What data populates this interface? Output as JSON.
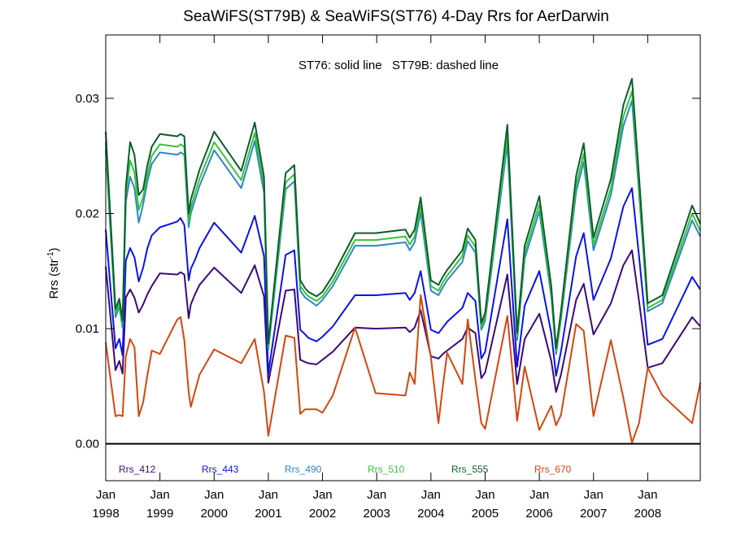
{
  "chart_data": {
    "type": "line",
    "title": "SeaWiFS(ST79B) & SeaWiFS(ST76) 4-Day Rrs for AerDarwin",
    "annotation": "ST76: solid line   ST79B: dashed line",
    "ylabel_main": "Rrs (str",
    "ylabel_sup": "-1",
    "ylabel_close": ")",
    "xlim": [
      1998.0,
      2008.97
    ],
    "ylim": [
      -0.0032,
      0.0355
    ],
    "yticks": [
      {
        "value": 0.0,
        "label": "0.00"
      },
      {
        "value": 0.01,
        "label": "0.01"
      },
      {
        "value": 0.02,
        "label": "0.02"
      },
      {
        "value": 0.03,
        "label": "0.03"
      }
    ],
    "xticks": [
      {
        "value": 1998.0,
        "month": "Jan",
        "year": "1998"
      },
      {
        "value": 1999.0,
        "month": "Jan",
        "year": "1999"
      },
      {
        "value": 2000.0,
        "month": "Jan",
        "year": "2000"
      },
      {
        "value": 2001.0,
        "month": "Jan",
        "year": "2001"
      },
      {
        "value": 2002.0,
        "month": "Jan",
        "year": "2002"
      },
      {
        "value": 2003.0,
        "month": "Jan",
        "year": "2003"
      },
      {
        "value": 2004.0,
        "month": "Jan",
        "year": "2004"
      },
      {
        "value": 2005.0,
        "month": "Jan",
        "year": "2005"
      },
      {
        "value": 2006.0,
        "month": "Jan",
        "year": "2006"
      },
      {
        "value": 2007.0,
        "month": "Jan",
        "year": "2007"
      },
      {
        "value": 2008.0,
        "month": "Jan",
        "year": "2008"
      }
    ],
    "x": [
      1998.0,
      1998.18,
      1998.25,
      1998.31,
      1998.37,
      1998.45,
      1998.53,
      1998.61,
      1998.69,
      1998.77,
      1998.85,
      1999.0,
      1999.32,
      1999.38,
      1999.45,
      1999.53,
      1999.57,
      1999.65,
      1999.73,
      2000.0,
      2000.5,
      2000.75,
      2000.92,
      2001.0,
      2001.32,
      2001.48,
      2001.59,
      2001.68,
      2001.74,
      2001.89,
      2002.0,
      2002.19,
      2002.6,
      2002.98,
      2003.53,
      2003.61,
      2003.7,
      2003.81,
      2004.0,
      2004.14,
      2004.22,
      2004.3,
      2004.58,
      2004.68,
      2004.82,
      2004.93,
      2005.0,
      2005.41,
      2005.59,
      2005.73,
      2006.0,
      2006.22,
      2006.31,
      2006.4,
      2006.68,
      2006.82,
      2007.0,
      2007.32,
      2007.55,
      2007.71,
      2007.84,
      2008.0,
      2008.27,
      2008.82,
      2008.97
    ],
    "legend": [
      {
        "label": "Rrs_412",
        "color": "#3a0a7a"
      },
      {
        "label": "Rrs_443",
        "color": "#0a14e6"
      },
      {
        "label": "Rrs_490",
        "color": "#2f86c6"
      },
      {
        "label": "Rrs_510",
        "color": "#36c33a"
      },
      {
        "label": "Rrs_555",
        "color": "#0a5e2a"
      },
      {
        "label": "Rrs_670",
        "color": "#d4460e"
      }
    ],
    "series": [
      {
        "name": "Rrs_412",
        "color": "#3a0a7a",
        "values": [
          0.0154,
          0.0064,
          0.0072,
          0.0061,
          0.0127,
          0.0134,
          0.0127,
          0.0114,
          0.0121,
          0.013,
          0.0137,
          0.0148,
          0.0147,
          0.0149,
          0.0147,
          0.0109,
          0.0121,
          0.013,
          0.0138,
          0.0153,
          0.0131,
          0.0155,
          0.0128,
          0.0053,
          0.0133,
          0.0134,
          0.0073,
          0.0071,
          0.007,
          0.0069,
          0.0073,
          0.008,
          0.0101,
          0.01,
          0.0101,
          0.0097,
          0.0101,
          0.0116,
          0.0076,
          0.0074,
          0.0078,
          0.0081,
          0.0091,
          0.0101,
          0.0096,
          0.0057,
          0.0062,
          0.0147,
          0.0052,
          0.0091,
          0.0113,
          0.0072,
          0.0045,
          0.006,
          0.0125,
          0.0139,
          0.0095,
          0.0122,
          0.0155,
          0.0168,
          0.0124,
          0.0066,
          0.007,
          0.011,
          0.0102
        ]
      },
      {
        "name": "Rrs_443",
        "color": "#0a14e6",
        "values": [
          0.0186,
          0.0083,
          0.0091,
          0.0077,
          0.0159,
          0.017,
          0.0162,
          0.0141,
          0.0153,
          0.017,
          0.0181,
          0.0188,
          0.0193,
          0.0196,
          0.019,
          0.0142,
          0.0152,
          0.016,
          0.017,
          0.0192,
          0.0166,
          0.0198,
          0.0163,
          0.0061,
          0.0164,
          0.0168,
          0.0099,
          0.0095,
          0.0092,
          0.0089,
          0.0093,
          0.0102,
          0.0129,
          0.0129,
          0.0131,
          0.0125,
          0.0131,
          0.015,
          0.0099,
          0.0096,
          0.0101,
          0.0106,
          0.0118,
          0.0131,
          0.0124,
          0.0074,
          0.008,
          0.0195,
          0.0067,
          0.012,
          0.015,
          0.0096,
          0.0059,
          0.008,
          0.0163,
          0.0183,
          0.0125,
          0.0161,
          0.0206,
          0.0222,
          0.0163,
          0.0086,
          0.0091,
          0.0145,
          0.0134
        ]
      },
      {
        "name": "Rrs_490",
        "color": "#2f86c6",
        "values": [
          0.0255,
          0.011,
          0.0119,
          0.0101,
          0.021,
          0.0232,
          0.0222,
          0.0192,
          0.0208,
          0.0228,
          0.0243,
          0.0253,
          0.0251,
          0.0253,
          0.0251,
          0.0188,
          0.02,
          0.0212,
          0.0224,
          0.0255,
          0.0222,
          0.0263,
          0.0218,
          0.0082,
          0.0221,
          0.0228,
          0.0133,
          0.0127,
          0.0125,
          0.012,
          0.0125,
          0.0137,
          0.0172,
          0.0172,
          0.0175,
          0.0168,
          0.0175,
          0.0201,
          0.0133,
          0.0129,
          0.0136,
          0.0142,
          0.0158,
          0.0176,
          0.0166,
          0.0099,
          0.0107,
          0.0261,
          0.009,
          0.0161,
          0.0202,
          0.0128,
          0.0078,
          0.0108,
          0.0219,
          0.0245,
          0.0168,
          0.0216,
          0.0276,
          0.0298,
          0.0218,
          0.0115,
          0.0122,
          0.0194,
          0.018
        ]
      },
      {
        "name": "Rrs_510",
        "color": "#36c33a",
        "values": [
          0.0262,
          0.0113,
          0.0122,
          0.0104,
          0.0216,
          0.0246,
          0.0236,
          0.0203,
          0.0214,
          0.0234,
          0.025,
          0.026,
          0.0258,
          0.026,
          0.0258,
          0.0193,
          0.0205,
          0.0218,
          0.023,
          0.0262,
          0.0229,
          0.027,
          0.0224,
          0.0084,
          0.0227,
          0.0234,
          0.0137,
          0.0131,
          0.0128,
          0.0124,
          0.0128,
          0.0141,
          0.0177,
          0.0177,
          0.018,
          0.0173,
          0.018,
          0.0207,
          0.0137,
          0.0133,
          0.014,
          0.0146,
          0.0163,
          0.0181,
          0.0171,
          0.0102,
          0.011,
          0.0268,
          0.0093,
          0.0166,
          0.0208,
          0.0132,
          0.008,
          0.0111,
          0.0225,
          0.0252,
          0.0173,
          0.0222,
          0.0284,
          0.0306,
          0.0224,
          0.0118,
          0.0125,
          0.02,
          0.0185
        ]
      },
      {
        "name": "Rrs_555",
        "color": "#0a5e2a",
        "values": [
          0.0271,
          0.0117,
          0.0126,
          0.0107,
          0.0223,
          0.0262,
          0.0251,
          0.0216,
          0.0221,
          0.0242,
          0.0258,
          0.0269,
          0.0267,
          0.0269,
          0.0267,
          0.02,
          0.0212,
          0.0225,
          0.0238,
          0.0271,
          0.0237,
          0.0279,
          0.0232,
          0.0087,
          0.0235,
          0.0242,
          0.0142,
          0.0135,
          0.0132,
          0.0128,
          0.0132,
          0.0146,
          0.0183,
          0.0183,
          0.0186,
          0.0179,
          0.0186,
          0.0214,
          0.0142,
          0.0138,
          0.0145,
          0.0151,
          0.0168,
          0.0187,
          0.0177,
          0.0105,
          0.0114,
          0.0277,
          0.0096,
          0.0172,
          0.0215,
          0.0137,
          0.0083,
          0.0115,
          0.0233,
          0.0261,
          0.0179,
          0.023,
          0.0294,
          0.0317,
          0.0232,
          0.0122,
          0.0129,
          0.0207,
          0.0191
        ]
      },
      {
        "name": "Rrs_670",
        "color": "#d4460e",
        "values": [
          0.0088,
          0.0024,
          0.0025,
          0.0024,
          0.0076,
          0.0091,
          0.0084,
          0.0024,
          0.0036,
          0.006,
          0.0081,
          0.0078,
          0.0108,
          0.011,
          0.009,
          0.0045,
          0.0032,
          0.0046,
          0.006,
          0.0082,
          0.007,
          0.0091,
          0.0045,
          0.0007,
          0.0094,
          0.0092,
          0.0026,
          0.003,
          0.003,
          0.003,
          0.0027,
          0.0042,
          0.0101,
          0.0044,
          0.0042,
          0.0062,
          0.0052,
          0.0129,
          0.0075,
          0.0018,
          0.005,
          0.0079,
          0.0052,
          0.0108,
          0.0056,
          0.0018,
          0.0013,
          0.0111,
          0.002,
          0.0067,
          0.0012,
          0.0033,
          0.0016,
          0.0025,
          0.0104,
          0.0098,
          0.0024,
          0.009,
          0.004,
          0.0001,
          0.0018,
          0.0066,
          0.0042,
          0.0018,
          0.0053
        ]
      }
    ]
  }
}
